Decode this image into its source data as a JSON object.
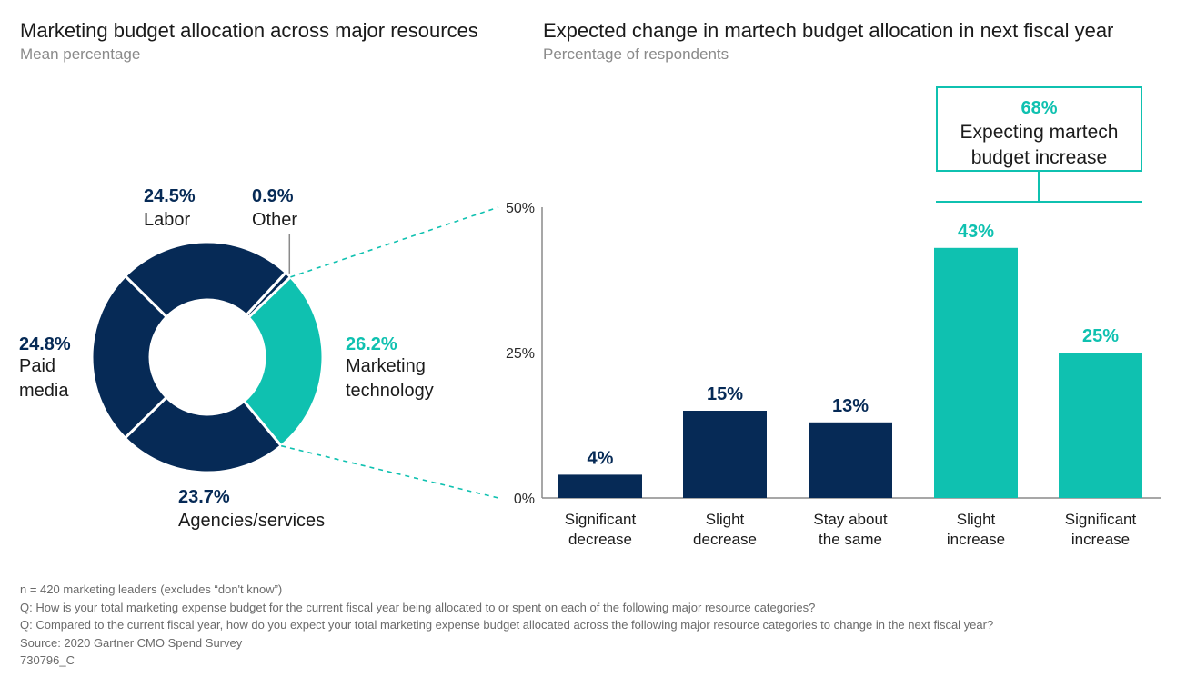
{
  "left_title": "Marketing budget allocation across major resources",
  "left_subtitle": "Mean percentage",
  "right_title": "Expected change in martech budget allocation in next fiscal year",
  "right_subtitle": "Percentage of respondents",
  "colors": {
    "navy": "#062a56",
    "teal": "#0fc1b0",
    "axis": "#8a8a8a"
  },
  "chart_data": [
    {
      "type": "pie",
      "title": "Marketing budget allocation across major resources",
      "subtitle": "Mean percentage",
      "slices": [
        {
          "label": "Other",
          "value": 0.9,
          "value_label": "0.9%",
          "color": "#062a56"
        },
        {
          "label": "Marketing technology",
          "value": 26.2,
          "value_label": "26.2%",
          "color": "#0fc1b0"
        },
        {
          "label": "Agencies/services",
          "value": 23.7,
          "value_label": "23.7%",
          "color": "#062a56"
        },
        {
          "label": "Paid media",
          "value": 24.8,
          "value_label": "24.8%",
          "color": "#062a56"
        },
        {
          "label": "Labor",
          "value": 24.5,
          "value_label": "24.5%",
          "color": "#062a56"
        }
      ]
    },
    {
      "type": "bar",
      "title": "Expected change in martech budget allocation in next fiscal year",
      "subtitle": "Percentage of respondents",
      "categories": [
        "Significant decrease",
        "Slight decrease",
        "Stay about the same",
        "Slight increase",
        "Significant increase"
      ],
      "category_lines": [
        [
          "Significant",
          "decrease"
        ],
        [
          "Slight",
          "decrease"
        ],
        [
          "Stay about",
          "the same"
        ],
        [
          "Slight",
          "increase"
        ],
        [
          "Significant",
          "increase"
        ]
      ],
      "values": [
        4,
        15,
        13,
        43,
        25
      ],
      "value_labels": [
        "4%",
        "15%",
        "13%",
        "43%",
        "25%"
      ],
      "colors": [
        "#062a56",
        "#062a56",
        "#062a56",
        "#0fc1b0",
        "#0fc1b0"
      ],
      "ylim": [
        0,
        50
      ],
      "yticks": [
        "0%",
        "25%",
        "50%"
      ],
      "ytick_values": [
        0,
        25,
        50
      ],
      "xlabel": "",
      "ylabel": ""
    }
  ],
  "callout": {
    "value": "68%",
    "line1": "Expecting martech",
    "line2": "budget increase"
  },
  "notes": [
    "n = 420 marketing leaders (excludes “don't know”)",
    "Q: How is your total marketing expense budget for the current fiscal year being allocated to or spent on each of the following major resource categories?",
    "Q: Compared to the current fiscal year, how do you expect your total marketing expense budget allocated across the following major resource categories to change in the next fiscal year?",
    "Source: 2020 Gartner CMO Spend Survey",
    "730796_C"
  ]
}
